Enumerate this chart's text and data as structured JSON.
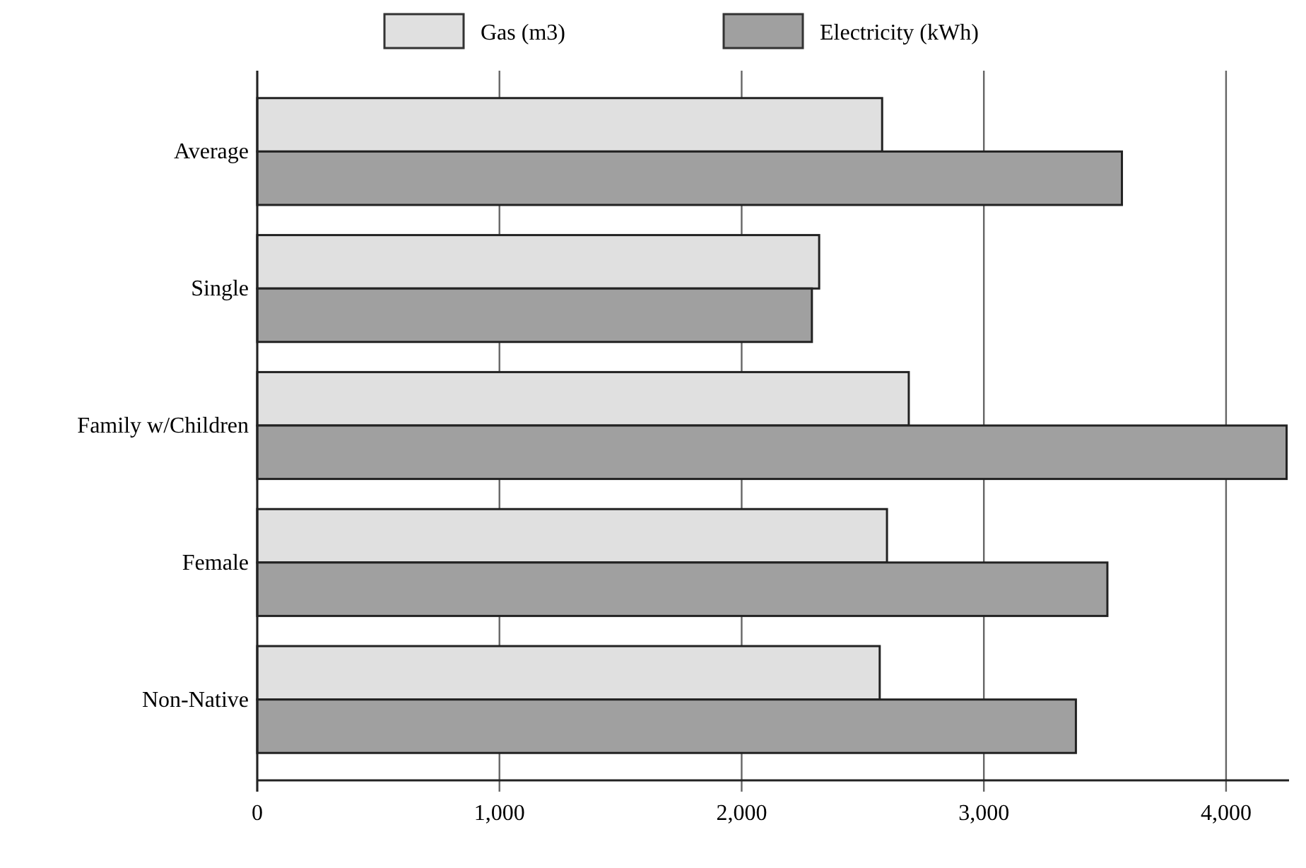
{
  "chart_data": {
    "type": "bar",
    "orientation": "horizontal",
    "categories": [
      "Average",
      "Single",
      "Family w/Children",
      "Female",
      "Non-Native"
    ],
    "series": [
      {
        "name": "Gas (m3)",
        "color": "#e0e0e0",
        "values": [
          2580,
          2320,
          2690,
          2600,
          2570
        ]
      },
      {
        "name": "Electricity (kWh)",
        "color": "#a0a0a0",
        "values": [
          3570,
          2290,
          4250,
          3510,
          3380
        ]
      }
    ],
    "xlim": [
      0,
      4260
    ],
    "xticks": [
      0,
      {
        "value": 1000,
        "label": "1,000"
      },
      {
        "value": 2000,
        "label": "2,000"
      },
      {
        "value": 3000,
        "label": "3,000"
      },
      {
        "value": 4000,
        "label": "4,000"
      }
    ],
    "grid": "x",
    "legend": "top"
  }
}
